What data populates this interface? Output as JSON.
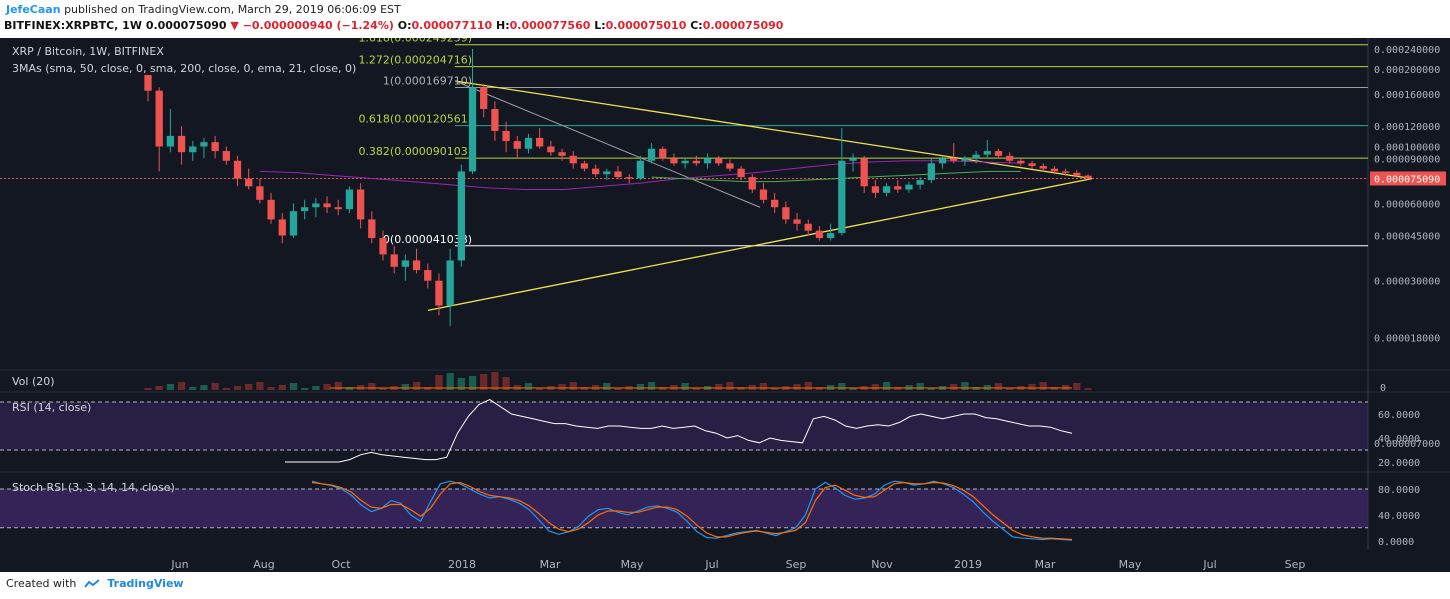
{
  "header": {
    "author": "JefeCaan",
    "published": "published on TradingView.com, March 29, 2019 06:06:09 EST",
    "symbol": "BITFINEX:XRPBTC, 1W",
    "last": "0.000075090",
    "change_arrow": "▼",
    "change": "−0.000000940 (−1.24%)",
    "o_label": "O:",
    "o_value": "0.000077110",
    "h_label": "H:",
    "h_value": "0.000077560",
    "l_label": "L:",
    "l_value": "0.000075010",
    "c_label": "C:",
    "c_value": "0.000075090"
  },
  "footer": {
    "created_with": "Created with",
    "brand": "TradingView"
  },
  "colors": {
    "background": "#131722",
    "up": "#26a69a",
    "down": "#ef5350",
    "triangle": "#f1e24c",
    "fib": "#b4d640",
    "ma50": "#9c27b0",
    "ma200": "#4caf50",
    "rsi": "#ffffff",
    "stoch_k": "#2196f3",
    "stoch_d": "#ff6d00",
    "panel_fill": "#3a2660"
  },
  "chart_data": [
    {
      "type": "candlestick",
      "title": "XRP / Bitcoin, 1W, BITFINEX",
      "indicator_label": "3MAs (sma, 50, close, 0, sma, 200, close, 0, ema, 21, close, 0)",
      "last_price_label": "0.000075090",
      "y_ticks": [
        "0.000240000",
        "0.000200000",
        "0.000160000",
        "0.000120000",
        "0.000100000",
        "0.000090000",
        "0.000075090",
        "0.000060000",
        "0.000045000",
        "0.000030000",
        "0.000018000",
        "0.000007000"
      ],
      "x_ticks": [
        "Jun",
        "Aug",
        "Oct",
        "2018",
        "Mar",
        "May",
        "Jul",
        "Sep",
        "Nov",
        "2019",
        "Mar",
        "May",
        "Jul",
        "Sep"
      ],
      "fib_levels": [
        {
          "label": "1.618(0.000249259)",
          "value": 0.000249259
        },
        {
          "label": "1.272(0.000204716)",
          "value": 0.000204716
        },
        {
          "label": "1(0.000169710)",
          "value": 0.00016971
        },
        {
          "label": "0.618(0.000120561)",
          "value": 0.000120561
        },
        {
          "label": "0.382(0.000090103)",
          "value": 9.0103e-05
        },
        {
          "label": "0(0.000041038)",
          "value": 4.1038e-05
        }
      ],
      "candles": [
        [
          0.00019,
          0.00019,
          0.00015,
          0.000165
        ],
        [
          0.000165,
          0.00017,
          8e-05,
          0.0001
        ],
        [
          0.0001,
          0.00014,
          9.5e-05,
          0.00011
        ],
        [
          0.00011,
          0.00012,
          8.5e-05,
          9.5e-05
        ],
        [
          9.5e-05,
          0.000105,
          8.8e-05,
          0.0001
        ],
        [
          0.0001,
          0.000108,
          9e-05,
          0.000104
        ],
        [
          0.000104,
          0.00011,
          9e-05,
          9.6e-05
        ],
        [
          9.6e-05,
          0.0001,
          8.5e-05,
          8.8e-05
        ],
        [
          8.8e-05,
          9.2e-05,
          7e-05,
          7.5e-05
        ],
        [
          7.5e-05,
          8.2e-05,
          6.8e-05,
          7e-05
        ],
        [
          7e-05,
          7.5e-05,
          6e-05,
          6.2e-05
        ],
        [
          6.2e-05,
          6.6e-05,
          5e-05,
          5.2e-05
        ],
        [
          5.2e-05,
          5.5e-05,
          4.2e-05,
          4.5e-05
        ],
        [
          4.5e-05,
          6e-05,
          4.4e-05,
          5.6e-05
        ],
        [
          5.6e-05,
          6.2e-05,
          5.2e-05,
          5.8e-05
        ],
        [
          5.8e-05,
          6.3e-05,
          5.3e-05,
          6e-05
        ],
        [
          6e-05,
          6.4e-05,
          5.5e-05,
          5.8e-05
        ],
        [
          5.8e-05,
          6.2e-05,
          5.4e-05,
          5.7e-05
        ],
        [
          5.7e-05,
          7e-05,
          5.5e-05,
          6.8e-05
        ],
        [
          6.8e-05,
          7.2e-05,
          4.8e-05,
          5.2e-05
        ],
        [
          5.2e-05,
          5.6e-05,
          4.2e-05,
          4.4e-05
        ],
        [
          4.4e-05,
          4.7e-05,
          3.6e-05,
          3.8e-05
        ],
        [
          3.8e-05,
          4.1e-05,
          3.2e-05,
          3.4e-05
        ],
        [
          3.4e-05,
          3.8e-05,
          3e-05,
          3.6e-05
        ],
        [
          3.6e-05,
          4e-05,
          3.2e-05,
          3.3e-05
        ],
        [
          3.3e-05,
          3.5e-05,
          2.8e-05,
          3e-05
        ],
        [
          3e-05,
          3.2e-05,
          2.2e-05,
          2.4e-05
        ],
        [
          2.4e-05,
          4e-05,
          2e-05,
          3.6e-05
        ],
        [
          3.6e-05,
          8.5e-05,
          3.4e-05,
          8e-05
        ],
        [
          8e-05,
          0.00024,
          7.8e-05,
          0.00017
        ],
        [
          0.00017,
          0.000175,
          0.00013,
          0.00014
        ],
        [
          0.00014,
          0.00015,
          0.000105,
          0.000115
        ],
        [
          0.000115,
          0.000125,
          9.5e-05,
          0.000105
        ],
        [
          0.000105,
          0.00011,
          9e-05,
          9.8e-05
        ],
        [
          9.8e-05,
          0.000112,
          9.4e-05,
          0.000108
        ],
        [
          0.000108,
          0.000118,
          9.8e-05,
          0.0001
        ],
        [
          0.0001,
          0.000105,
          9.2e-05,
          9.5e-05
        ],
        [
          9.5e-05,
          9.8e-05,
          8.8e-05,
          9.2e-05
        ],
        [
          9.2e-05,
          9.6e-05,
          8.2e-05,
          8.6e-05
        ],
        [
          8.6e-05,
          8.8e-05,
          8e-05,
          8.2e-05
        ],
        [
          8.2e-05,
          8.5e-05,
          7.6e-05,
          7.8e-05
        ],
        [
          7.8e-05,
          8.2e-05,
          7.4e-05,
          8e-05
        ],
        [
          8e-05,
          8.4e-05,
          7.5e-05,
          7.6e-05
        ],
        [
          7.6e-05,
          7.8e-05,
          7.2e-05,
          7.5e-05
        ],
        [
          7.5e-05,
          9.2e-05,
          7.4e-05,
          8.8e-05
        ],
        [
          8.8e-05,
          0.000103,
          8.6e-05,
          9.8e-05
        ],
        [
          9.8e-05,
          0.0001,
          8.8e-05,
          9e-05
        ],
        [
          9e-05,
          9.4e-05,
          8.4e-05,
          8.6e-05
        ],
        [
          8.6e-05,
          9e-05,
          8.2e-05,
          8.8e-05
        ],
        [
          8.8e-05,
          9.2e-05,
          8.4e-05,
          8.6e-05
        ],
        [
          8.6e-05,
          9.4e-05,
          8.2e-05,
          9e-05
        ],
        [
          9e-05,
          9.2e-05,
          8.4e-05,
          8.6e-05
        ],
        [
          8.6e-05,
          8.9e-05,
          8e-05,
          8.2e-05
        ],
        [
          8.2e-05,
          8.4e-05,
          7.4e-05,
          7.6e-05
        ],
        [
          7.6e-05,
          7.8e-05,
          6.6e-05,
          6.8e-05
        ],
        [
          6.8e-05,
          7.2e-05,
          6e-05,
          6.2e-05
        ],
        [
          6.2e-05,
          6.6e-05,
          5.5e-05,
          5.8e-05
        ],
        [
          5.8e-05,
          6.1e-05,
          5e-05,
          5.2e-05
        ],
        [
          5.2e-05,
          5.5e-05,
          4.7e-05,
          5e-05
        ],
        [
          5e-05,
          5.2e-05,
          4.5e-05,
          4.7e-05
        ],
        [
          4.7e-05,
          4.9e-05,
          4.3e-05,
          4.4e-05
        ],
        [
          4.4e-05,
          5e-05,
          4.3e-05,
          4.6e-05
        ],
        [
          4.6e-05,
          0.000118,
          4.5e-05,
          8.8e-05
        ],
        [
          8.8e-05,
          9.4e-05,
          8e-05,
          9e-05
        ],
        [
          9e-05,
          9.2e-05,
          6.6e-05,
          7e-05
        ],
        [
          7e-05,
          7.4e-05,
          6.3e-05,
          6.6e-05
        ],
        [
          6.6e-05,
          7.2e-05,
          6.4e-05,
          7e-05
        ],
        [
          7e-05,
          7.4e-05,
          6.6e-05,
          6.8e-05
        ],
        [
          6.8e-05,
          7.3e-05,
          6.6e-05,
          7.1e-05
        ],
        [
          7.1e-05,
          7.6e-05,
          6.8e-05,
          7.4e-05
        ],
        [
          7.4e-05,
          9e-05,
          7.2e-05,
          8.6e-05
        ],
        [
          8.6e-05,
          9.2e-05,
          8.2e-05,
          9e-05
        ],
        [
          9e-05,
          0.000103,
          8.6e-05,
          8.8e-05
        ],
        [
          8.8e-05,
          9.2e-05,
          8.4e-05,
          9e-05
        ],
        [
          9e-05,
          9.6e-05,
          8.6e-05,
          9.3e-05
        ],
        [
          9.3e-05,
          0.000106,
          9e-05,
          9.6e-05
        ],
        [
          9.6e-05,
          9.8e-05,
          9e-05,
          9.2e-05
        ],
        [
          9.2e-05,
          9.5e-05,
          8.6e-05,
          8.8e-05
        ],
        [
          8.8e-05,
          9e-05,
          8.4e-05,
          8.6e-05
        ],
        [
          8.6e-05,
          8.8e-05,
          8.2e-05,
          8.4e-05
        ],
        [
          8.4e-05,
          8.6e-05,
          8e-05,
          8.2e-05
        ],
        [
          8.2e-05,
          8.4e-05,
          7.8e-05,
          8e-05
        ],
        [
          8e-05,
          8.2e-05,
          7.7e-05,
          7.9e-05
        ],
        [
          7.9e-05,
          8.1e-05,
          7.6e-05,
          7.7e-05
        ],
        [
          7.7e-05,
          7.8e-05,
          7.5e-05,
          7.5e-05
        ]
      ],
      "ma50": [
        8e-05,
        7.9e-05,
        7.7e-05,
        7.5e-05,
        7.3e-05,
        7.1e-05,
        6.9e-05,
        6.8e-05,
        6.8e-05,
        7e-05,
        7.2e-05,
        7.5e-05,
        7.7e-05,
        7.9e-05,
        8.2e-05,
        8.5e-05,
        8.7e-05,
        8.8e-05,
        8.8e-05,
        8.7e-05,
        8.6e-05
      ],
      "ma200": [
        7.6e-05,
        7.5e-05,
        7.4e-05,
        7.3e-05,
        7.3e-05,
        7.4e-05,
        7.5e-05,
        7.6e-05,
        7.7e-05,
        7.8e-05,
        7.9e-05,
        8e-05,
        8e-05
      ],
      "triangle": {
        "apex": 7.5e-05,
        "top_start": 0.00018,
        "bottom_start": 2.3e-05
      }
    },
    {
      "type": "bar",
      "title": "Vol (20)",
      "y_ticks": [
        "0"
      ],
      "values_label": "volume"
    },
    {
      "type": "line",
      "title": "RSI (14, close)",
      "y_ticks": [
        "60.0000",
        "40.0000",
        "20.0000"
      ],
      "bands": [
        70,
        30
      ],
      "values": [
        20,
        20,
        20,
        20,
        20,
        20,
        22,
        26,
        28,
        26,
        25,
        24,
        23,
        22,
        22,
        24,
        44,
        58,
        68,
        72,
        66,
        60,
        58,
        56,
        54,
        52,
        52,
        50,
        49,
        48,
        50,
        50,
        49,
        48,
        48,
        50,
        48,
        49,
        50,
        46,
        44,
        40,
        42,
        38,
        36,
        40,
        38,
        37,
        36,
        56,
        58,
        55,
        50,
        48,
        50,
        51,
        50,
        53,
        58,
        60,
        58,
        56,
        58,
        60,
        60,
        57,
        56,
        54,
        52,
        50,
        50,
        49,
        46,
        44
      ],
      "ylim": [
        15,
        75
      ]
    },
    {
      "type": "line",
      "title": "Stoch RSI (3, 3, 14, 14, close)",
      "y_ticks": [
        "80.0000",
        "40.0000",
        "0.0000"
      ],
      "bands": [
        80,
        20
      ],
      "k": [
        92,
        88,
        85,
        80,
        70,
        55,
        45,
        50,
        62,
        58,
        40,
        30,
        60,
        88,
        92,
        88,
        80,
        72,
        66,
        68,
        64,
        58,
        48,
        32,
        15,
        10,
        14,
        22,
        38,
        48,
        50,
        44,
        40,
        46,
        52,
        54,
        50,
        44,
        30,
        14,
        5,
        4,
        8,
        12,
        14,
        16,
        12,
        8,
        14,
        20,
        40,
        80,
        90,
        82,
        70,
        64,
        66,
        72,
        86,
        92,
        90,
        86,
        88,
        92,
        88,
        82,
        72,
        60,
        44,
        30,
        18,
        6,
        4,
        3,
        2,
        3,
        2,
        1
      ],
      "d": [
        90,
        88,
        86,
        82,
        75,
        62,
        52,
        50,
        56,
        56,
        48,
        38,
        50,
        72,
        88,
        90,
        84,
        76,
        70,
        68,
        66,
        62,
        54,
        42,
        28,
        18,
        14,
        18,
        28,
        40,
        46,
        46,
        44,
        44,
        48,
        52,
        52,
        48,
        38,
        24,
        12,
        6,
        6,
        10,
        13,
        15,
        13,
        11,
        13,
        16,
        28,
        62,
        82,
        86,
        78,
        70,
        67,
        68,
        78,
        88,
        90,
        88,
        88,
        90,
        89,
        85,
        78,
        68,
        54,
        40,
        28,
        16,
        9,
        6,
        4,
        4,
        3,
        2
      ],
      "ylim": [
        -5,
        100
      ]
    }
  ]
}
